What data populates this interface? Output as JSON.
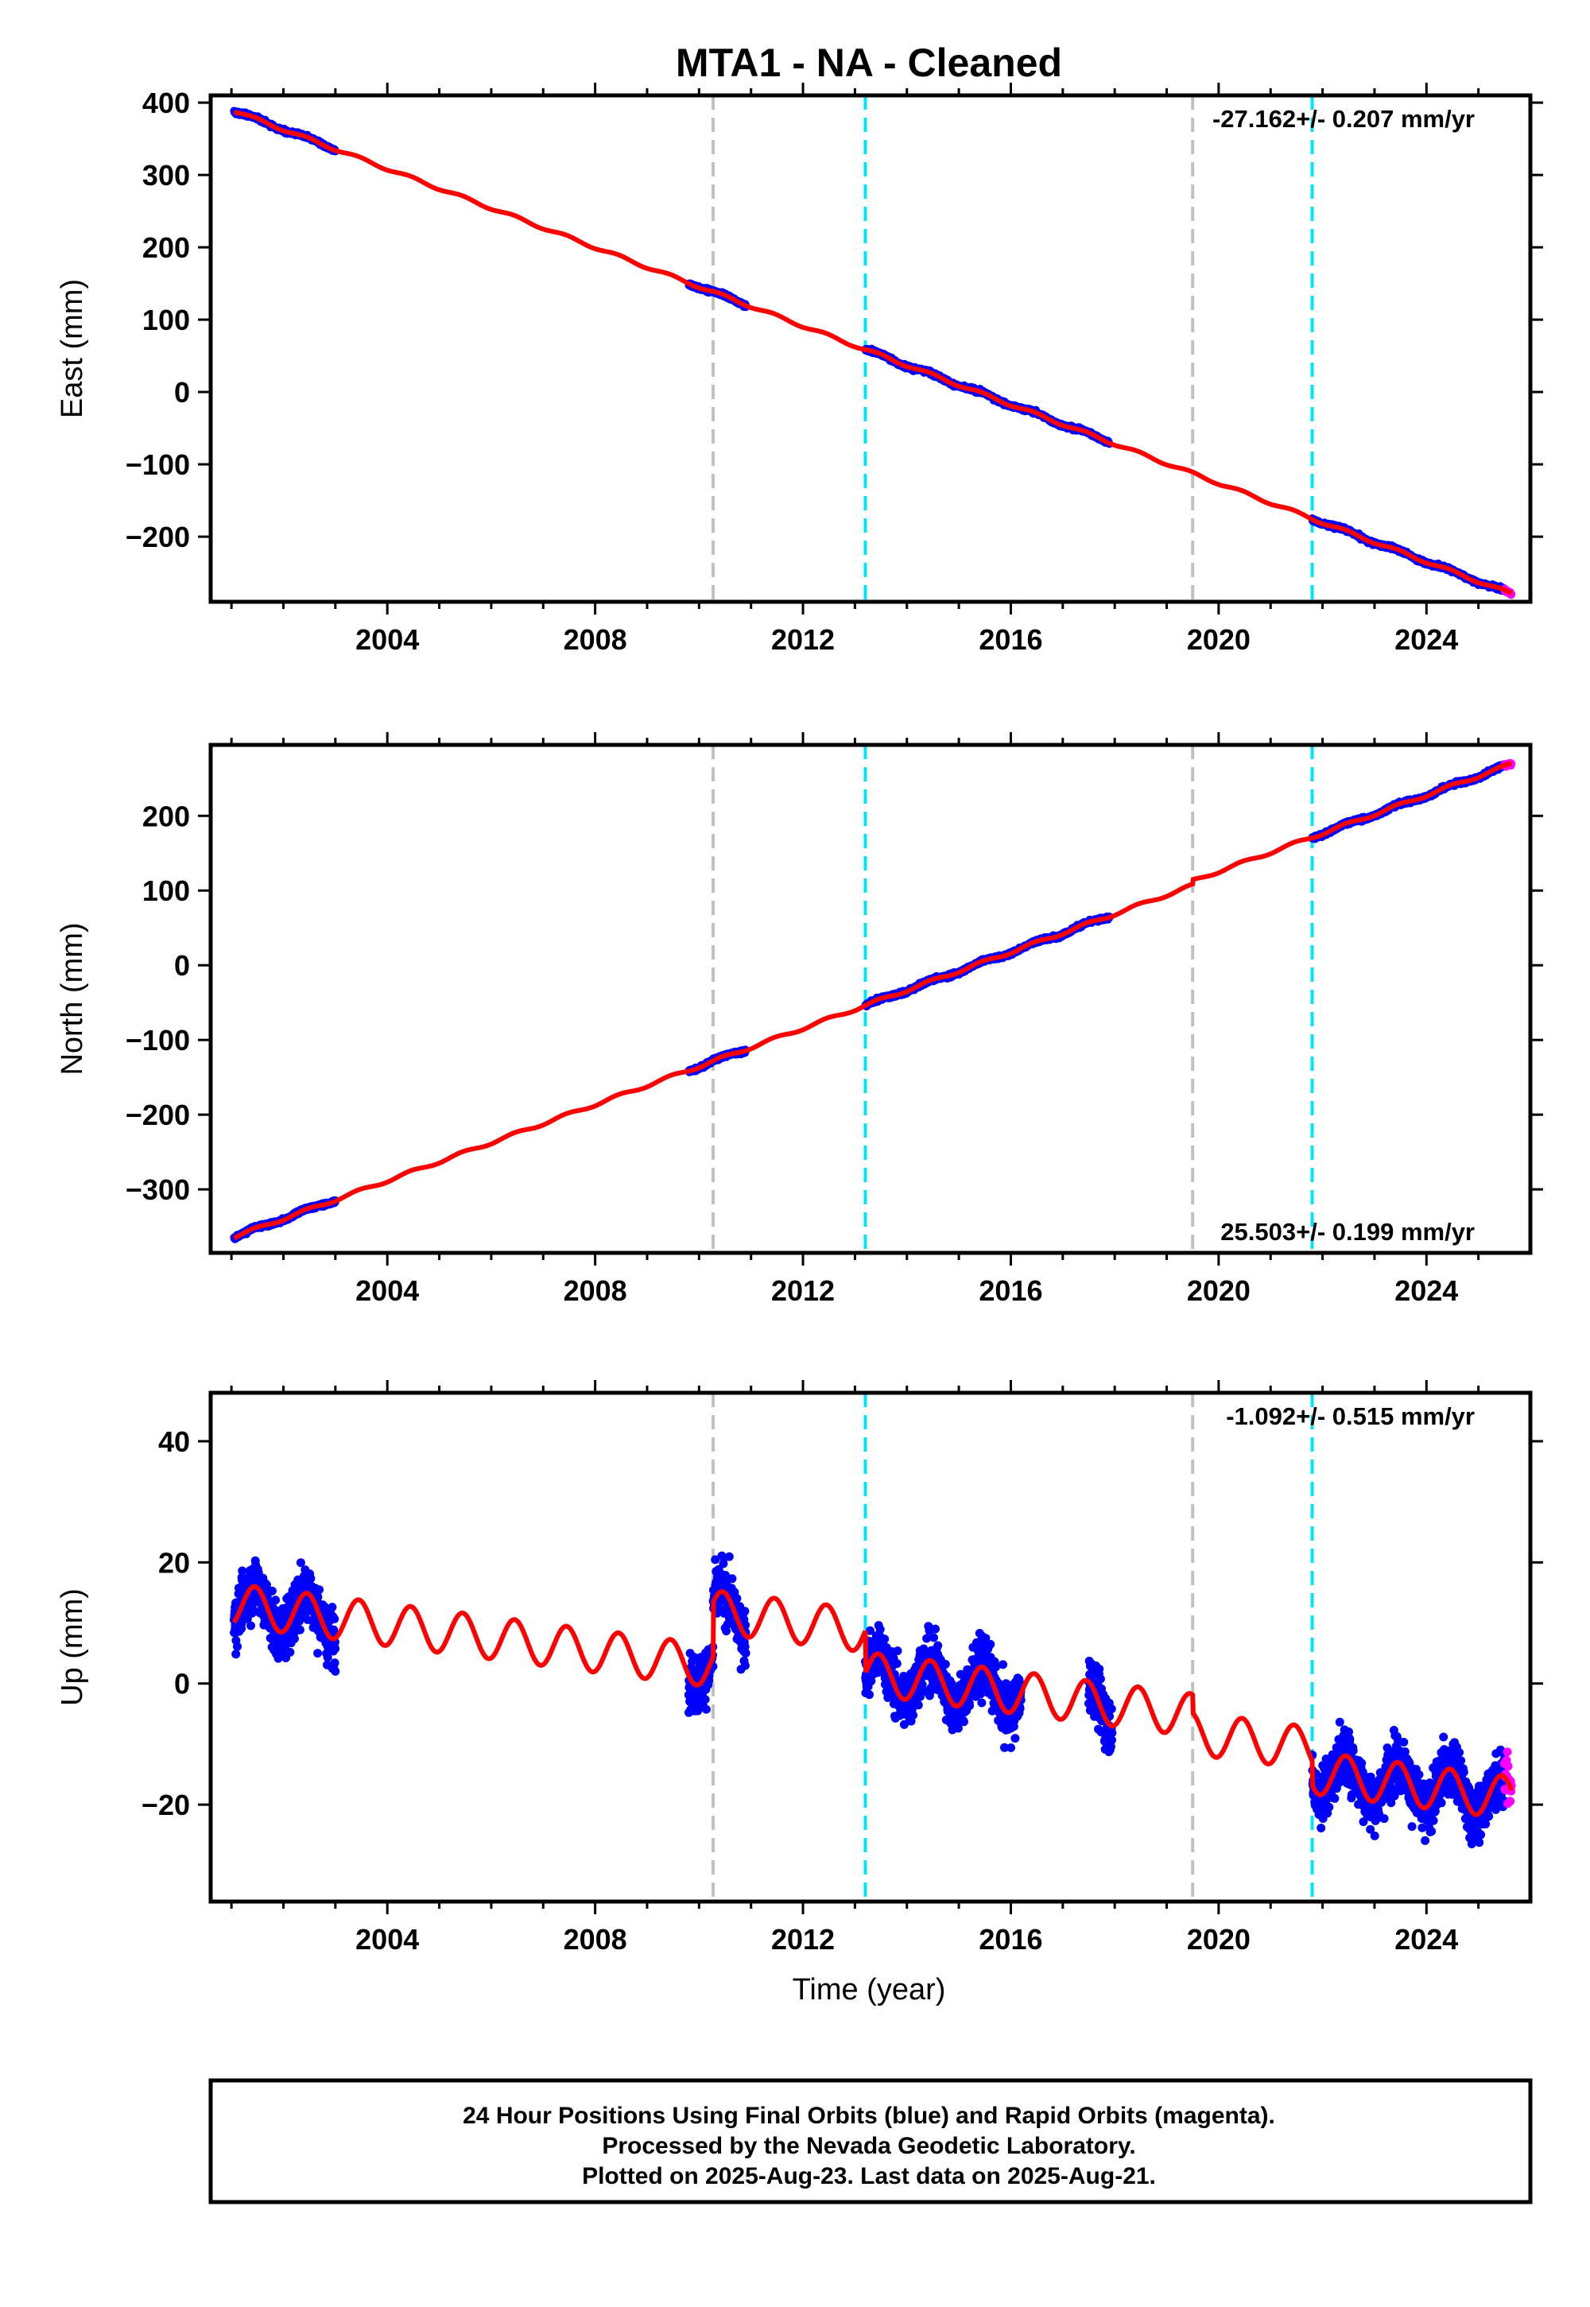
{
  "title": "MTA1  - NA - Cleaned",
  "xlabel": "Time (year)",
  "caption": {
    "line1": "24 Hour Positions Using Final Orbits (blue) and Rapid Orbits (magenta).",
    "line2": "Processed by the Nevada Geodetic Laboratory.",
    "line3": "Plotted on 2025-Aug-23. Last data on 2025-Aug-21."
  },
  "colors": {
    "final": "#0000ff",
    "rapid": "#ff00ff",
    "model": "#ff0000",
    "antenna_change": "#c0c0c0",
    "equipment_change": "#00e5ff"
  },
  "chart_data": [
    {
      "type": "scatter",
      "component": "east",
      "ylabel": "East (mm)",
      "rate_label": "-27.162+/- 0.207 mm/yr",
      "rate_position": "top-right",
      "xlim": [
        2000.6,
        2026.0
      ],
      "ylim": [
        -290,
        410
      ],
      "xticks": [
        2004,
        2008,
        2012,
        2016,
        2020,
        2024
      ],
      "yticks": [
        400,
        300,
        200,
        100,
        0,
        -100,
        -200
      ],
      "ytick_labels": [
        "400",
        "300",
        "200",
        "100",
        "0",
        "−100",
        "−200"
      ],
      "intercept_2001": 390,
      "slope": -27.162,
      "seasonal_amp": 2,
      "offsets": [],
      "noise": 2.5,
      "vlines_gray": [
        2010.27,
        2019.5
      ],
      "vlines_cyan": [
        2013.2,
        2021.8
      ],
      "data_segments": [
        [
          2001.05,
          2003.0
        ],
        [
          2009.8,
          2010.9
        ],
        [
          2013.2,
          2017.9
        ],
        [
          2021.8,
          2025.5
        ]
      ],
      "rapid_segment": [
        2025.5,
        2025.64
      ]
    },
    {
      "type": "scatter",
      "component": "north",
      "ylabel": "North (mm)",
      "rate_label": "25.503+/- 0.199 mm/yr",
      "rate_position": "bottom-right",
      "xlim": [
        2000.6,
        2026.0
      ],
      "ylim": [
        -385,
        295
      ],
      "xticks": [
        2004,
        2008,
        2012,
        2016,
        2020,
        2024
      ],
      "yticks": [
        200,
        100,
        0,
        -100,
        -200,
        -300
      ],
      "ytick_labels": [
        "200",
        "100",
        "0",
        "−100",
        "−200",
        "−300"
      ],
      "intercept_2001": -365,
      "slope": 25.503,
      "seasonal_amp": 2,
      "offsets": [
        [
          2019.5,
          6
        ]
      ],
      "noise": 2.5,
      "vlines_gray": [
        2010.27,
        2019.5
      ],
      "vlines_cyan": [
        2013.2,
        2021.8
      ],
      "data_segments": [
        [
          2001.05,
          2003.0
        ],
        [
          2009.8,
          2010.9
        ],
        [
          2013.2,
          2017.9
        ],
        [
          2021.8,
          2025.5
        ]
      ],
      "rapid_segment": [
        2025.5,
        2025.64
      ]
    },
    {
      "type": "scatter",
      "component": "up",
      "ylabel": "Up (mm)",
      "rate_label": "-1.092+/- 0.515 mm/yr",
      "rate_position": "top-right",
      "xlim": [
        2000.6,
        2026.0
      ],
      "ylim": [
        -36,
        48
      ],
      "xticks": [
        2004,
        2008,
        2012,
        2016,
        2020,
        2024
      ],
      "yticks": [
        40,
        20,
        0,
        -20
      ],
      "ytick_labels": [
        "40",
        "20",
        "0",
        "−20"
      ],
      "intercept_2001": 13,
      "slope": -1.092,
      "seasonal_amp": 3.5,
      "offsets": [
        [
          2010.27,
          9
        ],
        [
          2013.2,
          -7
        ],
        [
          2019.5,
          -3
        ],
        [
          2021.8,
          -4
        ]
      ],
      "noise": 4.5,
      "vlines_gray": [
        2010.27,
        2019.5
      ],
      "vlines_cyan": [
        2013.2,
        2021.8
      ],
      "data_segments": [
        [
          2001.05,
          2003.0
        ],
        [
          2009.8,
          2010.9
        ],
        [
          2013.2,
          2016.2
        ],
        [
          2017.5,
          2017.95
        ],
        [
          2021.8,
          2025.5
        ]
      ],
      "rapid_segment": [
        2025.5,
        2025.64
      ]
    }
  ]
}
